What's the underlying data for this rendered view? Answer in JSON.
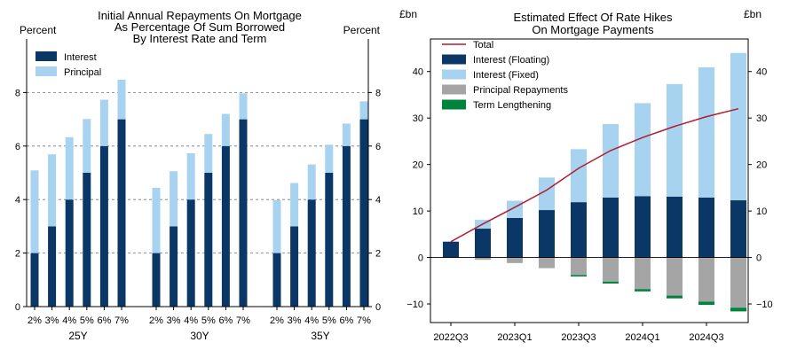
{
  "chart_data": [
    {
      "type": "bar",
      "stacked": true,
      "title_lines": [
        "Initial Annual Repayments On Mortgage",
        "As Percentage Of Sum Borrowed",
        "By Interest Rate and Term"
      ],
      "ylabel_left": "Percent",
      "ylabel_right": "Percent",
      "ylim": [
        0,
        10
      ],
      "yticks": [
        0,
        2,
        4,
        6,
        8
      ],
      "grid": "dashed horizontal",
      "legend_position": "top-left",
      "groups": [
        {
          "label": "25Y",
          "categories": [
            "2%",
            "3%",
            "4%",
            "5%",
            "6%",
            "7%"
          ]
        },
        {
          "label": "30Y",
          "categories": [
            "2%",
            "3%",
            "4%",
            "5%",
            "6%",
            "7%"
          ]
        },
        {
          "label": "35Y",
          "categories": [
            "2%",
            "3%",
            "4%",
            "5%",
            "6%",
            "7%"
          ]
        }
      ],
      "series": [
        {
          "name": "Interest",
          "color": "#0a3766",
          "values": [
            [
              2,
              3,
              4,
              5,
              6,
              7
            ],
            [
              2,
              3,
              4,
              5,
              6,
              7
            ],
            [
              2,
              3,
              4,
              5,
              6,
              7
            ]
          ]
        },
        {
          "name": "Principal",
          "color": "#a7d3f0",
          "values": [
            [
              3.09,
              2.69,
              2.33,
              2.01,
              1.73,
              1.48
            ],
            [
              2.44,
              2.06,
              1.73,
              1.45,
              1.2,
              0.97
            ],
            [
              1.98,
              1.62,
              1.31,
              1.05,
              0.84,
              0.67
            ]
          ]
        }
      ]
    },
    {
      "type": "bar+line",
      "stacked": true,
      "title_lines": [
        "Estimated Effect Of Rate Hikes",
        "On Mortgage Payments"
      ],
      "ylabel_left": "£bn",
      "ylabel_right": "£bn",
      "ylim": [
        -14,
        47
      ],
      "yticks": [
        -10,
        0,
        10,
        20,
        30,
        40
      ],
      "legend_position": "top-left",
      "quarters": [
        "2022Q3",
        "2022Q4",
        "2023Q1",
        "2023Q2",
        "2023Q3",
        "2023Q4",
        "2024Q1",
        "2024Q2",
        "2024Q3",
        "2024Q4"
      ],
      "xtick_labels": [
        "2022Q3",
        "2023Q1",
        "2023Q3",
        "2024Q1",
        "2024Q3"
      ],
      "series": [
        {
          "name": "Total",
          "kind": "line",
          "color": "#b01c2e",
          "values": [
            3.4,
            7.2,
            10.8,
            14.5,
            19.2,
            23.0,
            25.8,
            28.2,
            30.3,
            32.0
          ]
        },
        {
          "name": "Interest (Floating)",
          "kind": "bar",
          "color": "#0a3766",
          "values": [
            3.4,
            6.2,
            8.5,
            10.2,
            11.9,
            12.9,
            13.2,
            13.1,
            12.9,
            12.3
          ]
        },
        {
          "name": "Interest (Fixed)",
          "kind": "bar",
          "color": "#a7d3f0",
          "values": [
            0.0,
            1.9,
            3.7,
            7.0,
            11.4,
            15.8,
            20.0,
            24.2,
            28.0,
            31.7
          ]
        },
        {
          "name": "Principal Repayments",
          "kind": "bar",
          "color": "#a5a5a5",
          "values": [
            0.0,
            -0.5,
            -1.2,
            -2.3,
            -3.8,
            -5.2,
            -6.8,
            -8.2,
            -9.5,
            -10.8
          ]
        },
        {
          "name": "Term Lengthening",
          "kind": "bar",
          "color": "#00843d",
          "values": [
            0.0,
            0.0,
            0.0,
            0.0,
            -0.3,
            -0.4,
            -0.5,
            -0.6,
            -0.7,
            -0.8
          ]
        }
      ]
    }
  ]
}
